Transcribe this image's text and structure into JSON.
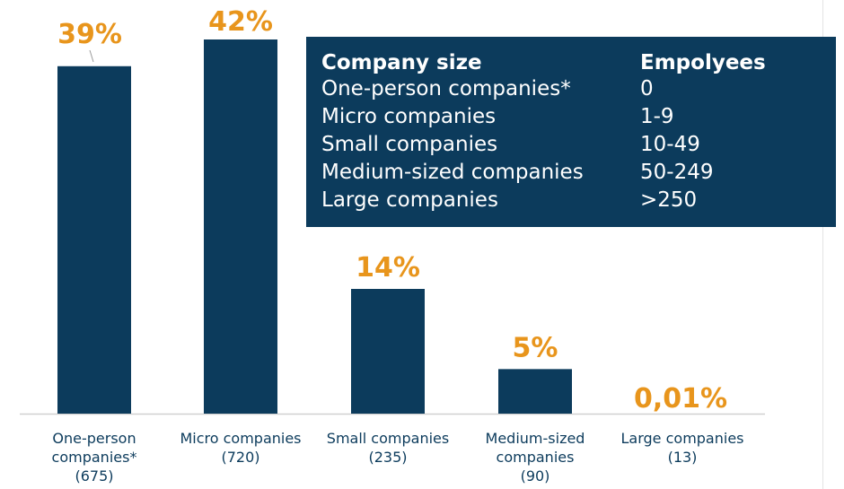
{
  "chart_data": {
    "type": "bar",
    "categories": [
      [
        "One-person",
        "companies*",
        "(675)"
      ],
      [
        "Micro companies",
        "(720)"
      ],
      [
        "Small companies",
        "(235)"
      ],
      [
        "Medium-sized",
        "companies",
        "(90)"
      ],
      [
        "Large companies",
        "(13)"
      ]
    ],
    "values": [
      39,
      42,
      14,
      5,
      0.01
    ],
    "value_labels": [
      "39%",
      "42%",
      "14%",
      "5%",
      "0,01%"
    ],
    "ylim": [
      0,
      42
    ],
    "bar_color": "#0c3b5c",
    "label_color": "#e8951c",
    "axis_color": "#d0d0d0"
  },
  "legend_table": {
    "headers": [
      "Company size",
      "Empolyees"
    ],
    "rows": [
      [
        "One-person companies*",
        "0"
      ],
      [
        "Micro companies",
        "1-9"
      ],
      [
        "Small companies",
        "10-49"
      ],
      [
        "Medium-sized companies",
        "50-249"
      ],
      [
        "Large companies",
        ">250"
      ]
    ]
  }
}
